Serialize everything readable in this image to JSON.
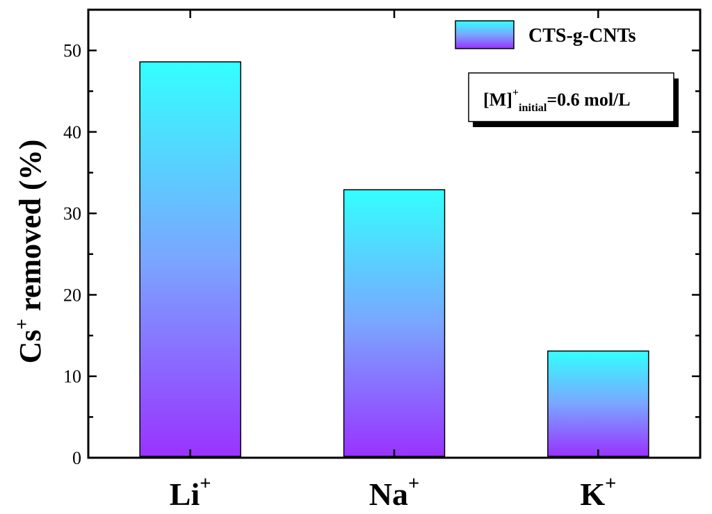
{
  "chart_data": {
    "type": "bar",
    "categories": [
      {
        "base": "Li",
        "sup": "+"
      },
      {
        "base": "Na",
        "sup": "+"
      },
      {
        "base": "K",
        "sup": "+"
      }
    ],
    "series": [
      {
        "name": "CTS-g-CNTs",
        "values": [
          48.6,
          32.9,
          13.1
        ]
      }
    ],
    "ylabel": {
      "base": "Cs",
      "sup": "+",
      "rest": " removed (%)"
    },
    "ylim": [
      0,
      55
    ],
    "yticks": [
      0,
      10,
      20,
      30,
      40,
      50
    ],
    "annotation": {
      "prefix": "[M]",
      "sup": "+",
      "sub": "initial",
      "suffix": "=0.6 mol/L"
    },
    "legend_position": "top-right",
    "colors": {
      "gradient_top": "#33ffff",
      "gradient_mid": "#7aa6ff",
      "gradient_bottom": "#9933ff",
      "axis": "#000000"
    }
  }
}
